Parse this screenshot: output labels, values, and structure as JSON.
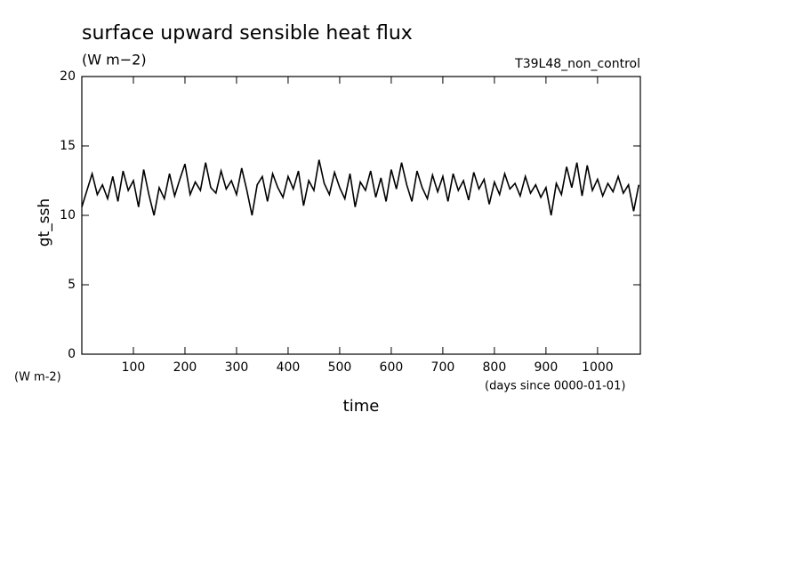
{
  "chart_data": {
    "type": "line",
    "title": "surface upward sensible heat flux",
    "subtitle": "(W m−2)",
    "annotation": "T39L48_non_control",
    "y_label": "gt_ssh",
    "y_units": "(W m-2)",
    "x_label": "time",
    "x_units": "(days since 0000-01-01)",
    "color": "#000000",
    "xlim": [
      0,
      1083
    ],
    "xticks": [
      100,
      200,
      300,
      400,
      500,
      600,
      700,
      800,
      900,
      1000
    ],
    "ylim": [
      0,
      20
    ],
    "yticks": [
      0,
      5,
      10,
      15,
      20
    ],
    "x": [
      0,
      10,
      20,
      30,
      40,
      50,
      60,
      70,
      80,
      90,
      100,
      110,
      120,
      130,
      140,
      150,
      160,
      170,
      180,
      190,
      200,
      210,
      220,
      230,
      240,
      250,
      260,
      270,
      280,
      290,
      300,
      310,
      320,
      330,
      340,
      350,
      360,
      370,
      380,
      390,
      400,
      410,
      420,
      430,
      440,
      450,
      460,
      470,
      480,
      490,
      500,
      510,
      520,
      530,
      540,
      550,
      560,
      570,
      580,
      590,
      600,
      610,
      620,
      630,
      640,
      650,
      660,
      670,
      680,
      690,
      700,
      710,
      720,
      730,
      740,
      750,
      760,
      770,
      780,
      790,
      800,
      810,
      820,
      830,
      840,
      850,
      860,
      870,
      880,
      890,
      900,
      910,
      920,
      930,
      940,
      950,
      960,
      970,
      980,
      990,
      1000,
      1010,
      1020,
      1030,
      1040,
      1050,
      1060,
      1070,
      1080
    ],
    "values": [
      10.6,
      11.8,
      13.0,
      11.5,
      12.2,
      11.2,
      12.8,
      11.0,
      13.2,
      11.8,
      12.5,
      10.6,
      13.3,
      11.5,
      10.0,
      12.0,
      11.2,
      13.0,
      11.4,
      12.6,
      13.7,
      11.5,
      12.4,
      11.8,
      13.8,
      12.0,
      11.6,
      13.2,
      11.9,
      12.5,
      11.5,
      13.4,
      11.8,
      10.0,
      12.2,
      12.8,
      11.0,
      13.0,
      12.0,
      11.3,
      12.8,
      11.9,
      13.2,
      10.7,
      12.5,
      11.8,
      14.0,
      12.3,
      11.5,
      13.1,
      12.0,
      11.2,
      13.0,
      10.6,
      12.4,
      11.8,
      13.2,
      11.3,
      12.7,
      11.0,
      13.3,
      11.9,
      13.8,
      12.2,
      11.0,
      13.2,
      12.0,
      11.2,
      12.9,
      11.7,
      12.8,
      11.0,
      13.0,
      11.8,
      12.5,
      11.1,
      13.1,
      11.9,
      12.6,
      10.8,
      12.4,
      11.5,
      13.0,
      11.9,
      12.3,
      11.4,
      12.8,
      11.6,
      12.2,
      11.3,
      12.0,
      10.0,
      12.3,
      11.5,
      13.5,
      12.0,
      13.8,
      11.4,
      13.6,
      11.8,
      12.6,
      11.4,
      12.3,
      11.7,
      12.8,
      11.6,
      12.2,
      10.3,
      12.2
    ]
  }
}
